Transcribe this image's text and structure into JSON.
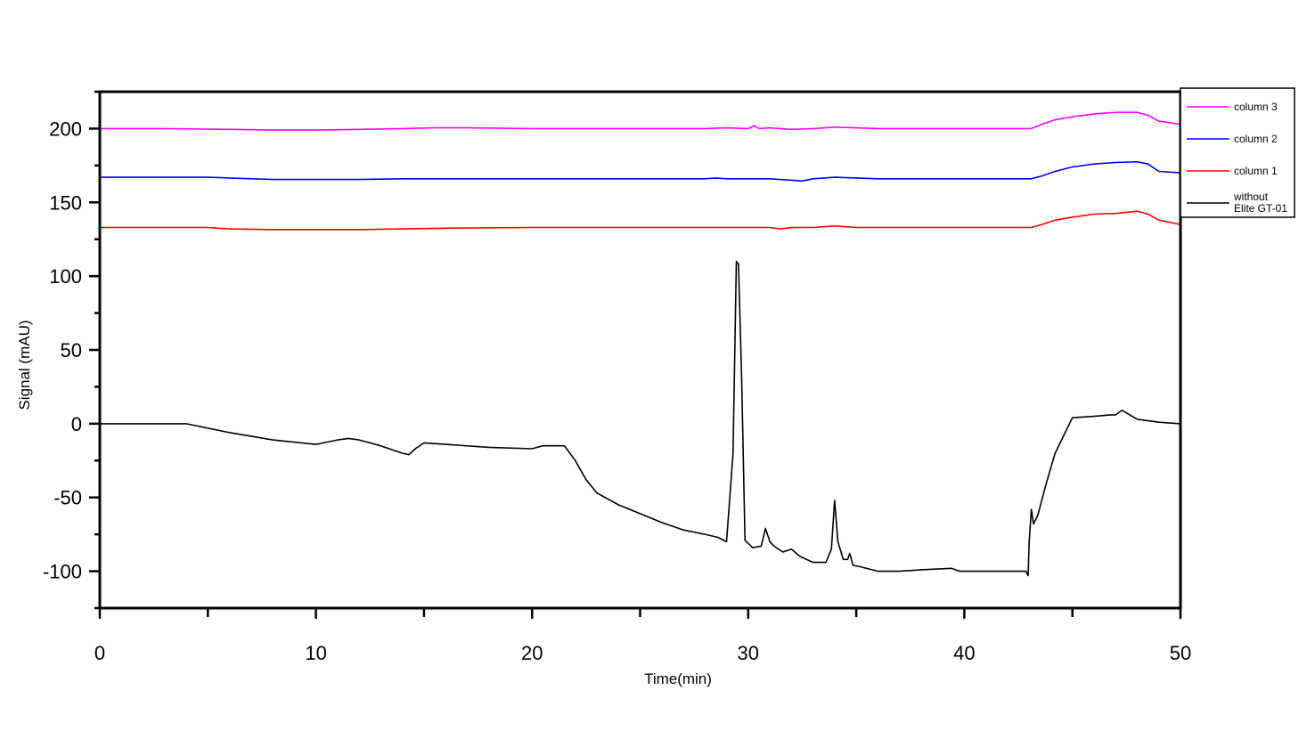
{
  "chart_data": {
    "type": "line",
    "xlabel": "Time(min)",
    "ylabel": "Signal (mAU)",
    "xlim": [
      0,
      50
    ],
    "ylim": [
      -125,
      225
    ],
    "xticks": [
      0,
      10,
      20,
      30,
      40,
      50
    ],
    "xticks_minor": [
      5,
      15,
      25,
      35,
      45
    ],
    "yticks": [
      -100,
      -50,
      0,
      50,
      100,
      150,
      200
    ],
    "yticks_minor": [
      -125,
      -75,
      -25,
      25,
      75,
      125,
      175,
      225
    ],
    "xtick_labels": [
      "0",
      "10",
      "20",
      "30",
      "40",
      "50"
    ],
    "ytick_labels": [
      "-100",
      "-50",
      "0",
      "50",
      "100",
      "150",
      "200"
    ],
    "grid": false,
    "legend_position": "top-right (outside plot)",
    "series": [
      {
        "name": "column 3",
        "color": "#ff00ff",
        "x": [
          0,
          3,
          6,
          8,
          10,
          12,
          14,
          15.5,
          17,
          20,
          22,
          25,
          28,
          29,
          30,
          30.3,
          30.5,
          31,
          32,
          33,
          34,
          35,
          36,
          38,
          40,
          42,
          43.1,
          43.6,
          44.2,
          45,
          46,
          47,
          48,
          48.5,
          49,
          50
        ],
        "y": [
          200,
          200,
          199.5,
          199,
          199,
          199.5,
          200,
          200.5,
          200.5,
          200,
          200,
          200,
          200,
          200.5,
          200,
          202,
          200,
          200.5,
          199.5,
          200,
          201,
          200.5,
          200,
          200,
          200,
          200,
          200,
          203,
          206,
          208,
          210,
          211,
          211,
          209,
          205,
          203
        ]
      },
      {
        "name": "column 2",
        "color": "#0000ff",
        "x": [
          0,
          5,
          6,
          8,
          10,
          12,
          14,
          16,
          20,
          22,
          25,
          28,
          28.5,
          29,
          30,
          31,
          32,
          32.5,
          33,
          34,
          35,
          36,
          38,
          40,
          42,
          43.1,
          43.6,
          44.2,
          45,
          46,
          47,
          48,
          48.5,
          49,
          50
        ],
        "y": [
          167,
          167,
          166.5,
          165.5,
          165.5,
          165.5,
          166,
          166,
          166,
          166,
          166,
          166,
          166.5,
          166,
          166,
          166,
          165,
          164.5,
          166,
          167,
          166.5,
          166,
          166,
          166,
          166,
          166,
          168,
          171,
          174,
          176,
          177,
          177.5,
          176,
          171,
          170
        ]
      },
      {
        "name": "column 1",
        "color": "#ff0000",
        "x": [
          0,
          5,
          6,
          8,
          10,
          12,
          14,
          16,
          20,
          22,
          25,
          28,
          29,
          30,
          31,
          31.5,
          32,
          33,
          34,
          35,
          36,
          38,
          40,
          42,
          43.1,
          43.6,
          44.2,
          45,
          46,
          47,
          48,
          48.5,
          49,
          50
        ],
        "y": [
          133,
          133,
          132,
          131.5,
          131.5,
          131.5,
          132,
          132.5,
          133,
          133,
          133,
          133,
          133,
          133,
          133,
          132,
          133,
          133,
          134,
          133,
          133,
          133,
          133,
          133,
          133,
          135,
          138,
          140,
          142,
          142.5,
          144,
          142,
          138,
          135
        ]
      },
      {
        "name": "without\nElite GT-01",
        "color": "#000000",
        "x": [
          0,
          4,
          6,
          8,
          10,
          11,
          11.5,
          12,
          13,
          14,
          14.3,
          14.6,
          15,
          16,
          18,
          20,
          20.5,
          21,
          21.5,
          22,
          22.5,
          23,
          24,
          25,
          26,
          27,
          28,
          28.6,
          29,
          29.3,
          29.45,
          29.55,
          29.7,
          29.85,
          30.2,
          30.6,
          30.8,
          31,
          31.2,
          31.6,
          32,
          32.4,
          33,
          33.6,
          33.85,
          34.0,
          34.15,
          34.4,
          34.6,
          34.7,
          34.85,
          35.2,
          36,
          37,
          38,
          39.4,
          39.8,
          41,
          42,
          42.85,
          42.95,
          43.0,
          43.1,
          43.2,
          43.4,
          43.8,
          44.2,
          45,
          46,
          46.8,
          47,
          47.3,
          48,
          49,
          50
        ],
        "y": [
          0,
          0,
          -6,
          -11,
          -14,
          -11,
          -10,
          -11,
          -15,
          -20,
          -21,
          -17,
          -13,
          -14,
          -16,
          -17,
          -15,
          -15,
          -15,
          -25,
          -38,
          -47,
          -55,
          -61,
          -67,
          -72,
          -75,
          -77,
          -80,
          -20,
          110,
          108,
          30,
          -79,
          -84,
          -83,
          -71,
          -80,
          -83,
          -87,
          -85,
          -90,
          -94,
          -94,
          -85,
          -52,
          -80,
          -92,
          -92,
          -88,
          -96,
          -97,
          -100,
          -100,
          -99,
          -98,
          -100,
          -100,
          -100,
          -100,
          -103,
          -80,
          -58,
          -68,
          -62,
          -40,
          -20,
          4,
          5,
          6,
          6,
          9,
          3,
          1,
          0
        ]
      }
    ]
  }
}
